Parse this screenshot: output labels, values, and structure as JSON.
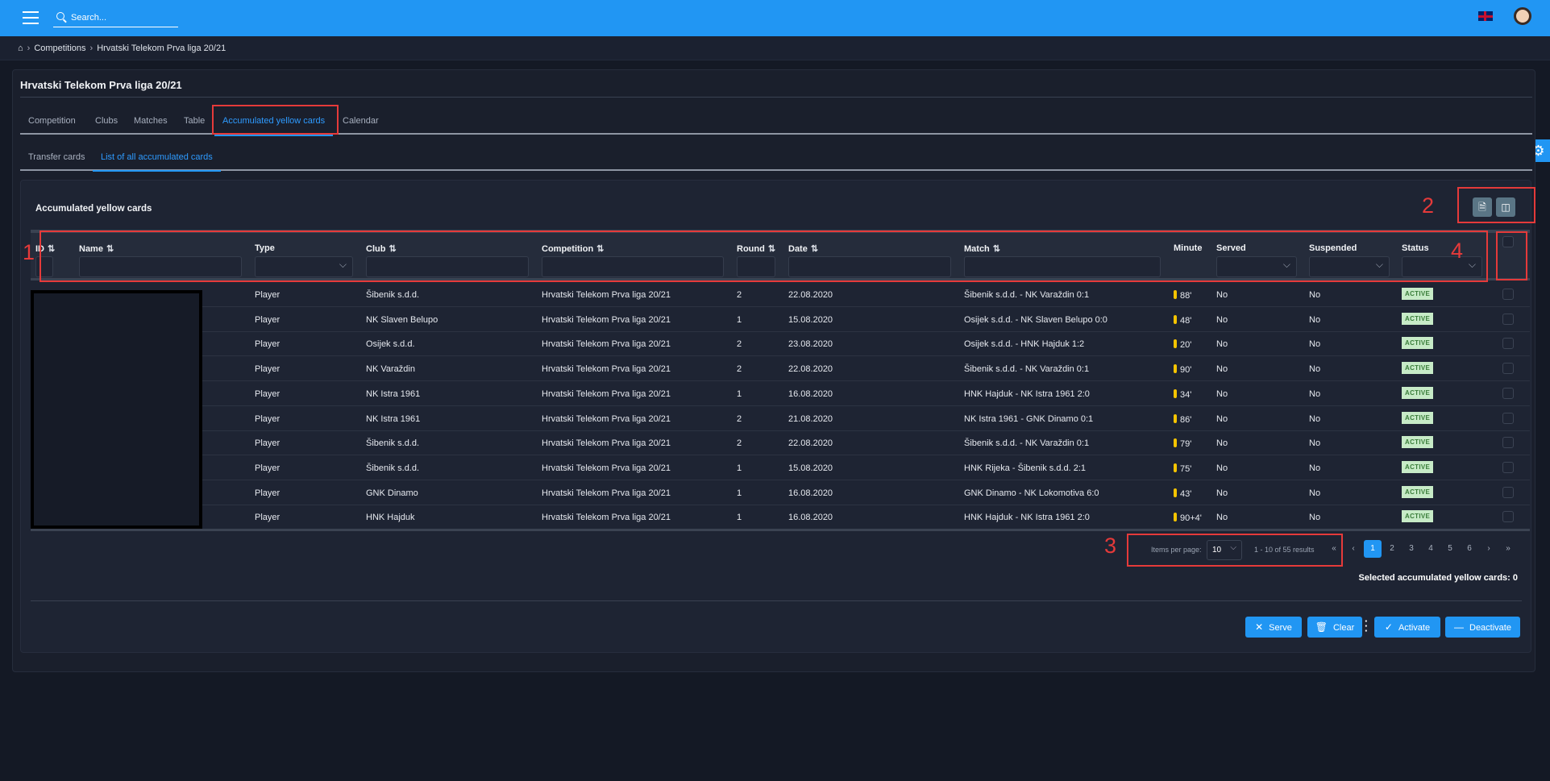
{
  "header": {
    "search_placeholder": "Search...",
    "menu_icon": "hamburger-icon",
    "language": "en-GB flag",
    "avatar": "user avatar"
  },
  "breadcrumb": [
    "Competitions",
    "Hrvatski Telekom Prva liga 20/21"
  ],
  "page_title": "Hrvatski Telekom Prva liga 20/21",
  "tabs": [
    {
      "label": "Competition"
    },
    {
      "label": "Clubs"
    },
    {
      "label": "Matches"
    },
    {
      "label": "Table"
    },
    {
      "label": "Accumulated yellow cards",
      "active": true
    },
    {
      "label": "Calendar"
    }
  ],
  "sub_tabs": [
    {
      "label": "Transfer cards"
    },
    {
      "label": "List of all accumulated cards",
      "active": true
    }
  ],
  "section_title": "Accumulated yellow cards",
  "toolbar": {
    "export_icon": "excel-export-icon",
    "columns_icon": "columns-icon"
  },
  "columns": {
    "id": "ID",
    "name": "Name",
    "type": "Type",
    "club": "Club",
    "competition": "Competition",
    "round": "Round",
    "date": "Date",
    "match": "Match",
    "minute": "Minute",
    "served": "Served",
    "suspended": "Suspended",
    "status": "Status"
  },
  "rows": [
    {
      "type": "Player",
      "club": "Šibenik s.d.d.",
      "competition": "Hrvatski Telekom Prva liga 20/21",
      "round": "2",
      "date": "22.08.2020",
      "match": "Šibenik s.d.d. - NK Varaždin 0:1",
      "minute": "88'",
      "served": "No",
      "suspended": "No",
      "status": "ACTIVE"
    },
    {
      "type": "Player",
      "club": "NK Slaven Belupo",
      "competition": "Hrvatski Telekom Prva liga 20/21",
      "round": "1",
      "date": "15.08.2020",
      "match": "Osijek s.d.d. - NK Slaven Belupo 0:0",
      "minute": "48'",
      "served": "No",
      "suspended": "No",
      "status": "ACTIVE"
    },
    {
      "type": "Player",
      "club": "Osijek s.d.d.",
      "competition": "Hrvatski Telekom Prva liga 20/21",
      "round": "2",
      "date": "23.08.2020",
      "match": "Osijek s.d.d. - HNK Hajduk 1:2",
      "minute": "20'",
      "served": "No",
      "suspended": "No",
      "status": "ACTIVE"
    },
    {
      "type": "Player",
      "club": "NK Varaždin",
      "competition": "Hrvatski Telekom Prva liga 20/21",
      "round": "2",
      "date": "22.08.2020",
      "match": "Šibenik s.d.d. - NK Varaždin 0:1",
      "minute": "90'",
      "served": "No",
      "suspended": "No",
      "status": "ACTIVE"
    },
    {
      "type": "Player",
      "club": "NK Istra 1961",
      "competition": "Hrvatski Telekom Prva liga 20/21",
      "round": "1",
      "date": "16.08.2020",
      "match": "HNK Hajduk - NK Istra 1961 2:0",
      "minute": "34'",
      "served": "No",
      "suspended": "No",
      "status": "ACTIVE"
    },
    {
      "type": "Player",
      "club": "NK Istra 1961",
      "competition": "Hrvatski Telekom Prva liga 20/21",
      "round": "2",
      "date": "21.08.2020",
      "match": "NK Istra 1961 - GNK Dinamo 0:1",
      "minute": "86'",
      "served": "No",
      "suspended": "No",
      "status": "ACTIVE"
    },
    {
      "type": "Player",
      "club": "Šibenik s.d.d.",
      "competition": "Hrvatski Telekom Prva liga 20/21",
      "round": "2",
      "date": "22.08.2020",
      "match": "Šibenik s.d.d. - NK Varaždin 0:1",
      "minute": "79'",
      "served": "No",
      "suspended": "No",
      "status": "ACTIVE"
    },
    {
      "type": "Player",
      "club": "Šibenik s.d.d.",
      "competition": "Hrvatski Telekom Prva liga 20/21",
      "round": "1",
      "date": "15.08.2020",
      "match": "HNK Rijeka - Šibenik s.d.d. 2:1",
      "minute": "75'",
      "served": "No",
      "suspended": "No",
      "status": "ACTIVE"
    },
    {
      "type": "Player",
      "club": "GNK Dinamo",
      "competition": "Hrvatski Telekom Prva liga 20/21",
      "round": "1",
      "date": "16.08.2020",
      "match": "GNK Dinamo - NK Lokomotiva 6:0",
      "minute": "43'",
      "served": "No",
      "suspended": "No",
      "status": "ACTIVE"
    },
    {
      "type": "Player",
      "club": "HNK Hajduk",
      "competition": "Hrvatski Telekom Prva liga 20/21",
      "round": "1",
      "date": "16.08.2020",
      "match": "HNK Hajduk - NK Istra 1961 2:0",
      "minute": "90+4'",
      "served": "No",
      "suspended": "No",
      "status": "ACTIVE"
    }
  ],
  "pagination": {
    "items_per_page_label": "Items per page:",
    "items_per_page": "10",
    "range": "1 - 10 of 55 results",
    "first": "«",
    "prev": "‹",
    "pages": [
      "1",
      "2",
      "3",
      "4",
      "5",
      "6"
    ],
    "current": "1",
    "next": "›",
    "last": "»"
  },
  "selected_text": "Selected accumulated yellow cards: 0",
  "actions": {
    "serve": "Serve",
    "clear": "Clear",
    "activate": "Activate",
    "deactivate": "Deactivate"
  },
  "annotations": [
    "1",
    "2",
    "3",
    "4"
  ],
  "colors": {
    "accent": "#2196f3",
    "annotation": "#e53a3a",
    "active_badge": "#c7ebc7"
  }
}
